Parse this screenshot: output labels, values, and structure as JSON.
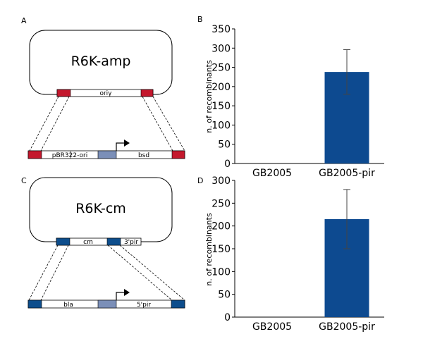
{
  "colors": {
    "red": "#c4182d",
    "navy": "#0d4d8c",
    "slate": "#7b8fb8",
    "bar": "#0d4a90"
  },
  "panels": {
    "a": {
      "label": "A",
      "plasmid": "R6K-amp",
      "ori_label": "oriγ",
      "cassette": {
        "left_segment": "pBR322-ori",
        "right_segment": "bsd",
        "arrow_icon": "promoter-arrow-icon"
      }
    },
    "c": {
      "label": "C",
      "plasmid": "R6K-cm",
      "cm_label": "cm",
      "pir_label": "3'pir",
      "cassette": {
        "left_segment": "bla",
        "right_segment": "5'pir",
        "arrow_icon": "promoter-arrow-icon"
      }
    }
  },
  "chart_data": [
    {
      "panel": "B",
      "type": "bar",
      "title": "",
      "xlabel": "",
      "ylabel": "n. of recombinants",
      "categories": [
        "GB2005",
        "GB2005-pir"
      ],
      "values": [
        0,
        238
      ],
      "errors": [
        0,
        58
      ],
      "ylim": [
        0,
        350
      ],
      "yticks": [
        0,
        50,
        100,
        150,
        200,
        250,
        300,
        350
      ],
      "grid": false,
      "legend": "none"
    },
    {
      "panel": "D",
      "type": "bar",
      "title": "",
      "xlabel": "",
      "ylabel": "n. of recombinants",
      "categories": [
        "GB2005",
        "GB2005-pir"
      ],
      "values": [
        0,
        215
      ],
      "errors": [
        0,
        65
      ],
      "ylim": [
        0,
        300
      ],
      "yticks": [
        0,
        50,
        100,
        150,
        200,
        250,
        300
      ],
      "grid": false,
      "legend": "none"
    }
  ]
}
